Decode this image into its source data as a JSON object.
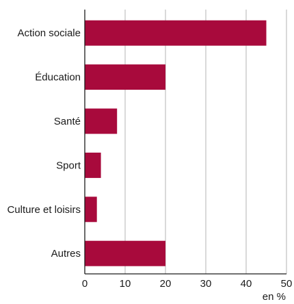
{
  "chart_data": {
    "type": "bar",
    "orientation": "horizontal",
    "categories": [
      "Action sociale",
      "Éducation",
      "Santé",
      "Sport",
      "Culture et loisirs",
      "Autres"
    ],
    "values": [
      45,
      20,
      8,
      4,
      3,
      20
    ],
    "xlim": [
      0,
      50
    ],
    "xticks": [
      0,
      10,
      20,
      30,
      40,
      50
    ],
    "x_unit_label": "en %",
    "grid": "vertical",
    "colors": {
      "bar": "#a80a3c",
      "grid": "#b3b3b3",
      "axis": "#1a1a1a"
    }
  }
}
